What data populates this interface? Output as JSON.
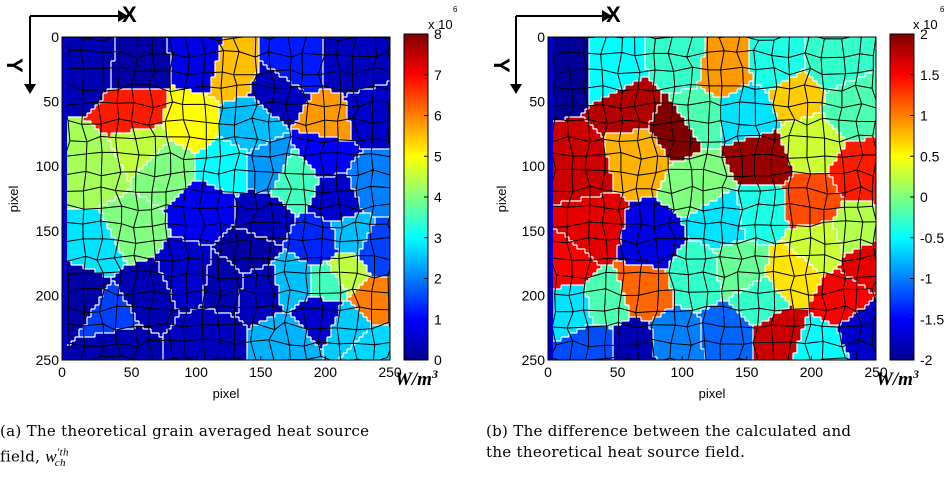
{
  "panels": [
    {
      "id": "a",
      "caption_tag": "(a)",
      "caption_line1": "The theoretical grain averaged heat source",
      "caption_line2": "field,",
      "caption_symbol": "w′ th ch",
      "x_axis_arrow": "X",
      "y_axis_arrow": "Y",
      "colorbar_exponent": "x 10",
      "colorbar_exponent_power": "6",
      "unit_label": "W/m³",
      "colormap": "jet"
    },
    {
      "id": "b",
      "caption_tag": "(b)",
      "caption_line1": "The difference between the calculated and",
      "caption_line2": "the theoretical heat source field.",
      "x_axis_arrow": "X",
      "y_axis_arrow": "Y",
      "colorbar_exponent": "x 10",
      "colorbar_exponent_power": "6",
      "unit_label": "W/m³",
      "colormap": "jet"
    }
  ],
  "chart_data": [
    {
      "type": "heatmap",
      "xlabel": "pixel",
      "ylabel": "pixel",
      "xlim": [
        0,
        250
      ],
      "ylim": [
        0,
        250
      ],
      "y_reversed": true,
      "x_ticks": [
        "0",
        "50",
        "100",
        "150",
        "200",
        "250"
      ],
      "y_ticks": [
        "0",
        "50",
        "100",
        "150",
        "200",
        "250"
      ],
      "colorbar_range": [
        0,
        8
      ],
      "colorbar_ticks": [
        "0",
        "1",
        "2",
        "3",
        "4",
        "5",
        "6",
        "7",
        "8"
      ],
      "grains": [
        {
          "x": 15,
          "y": 20,
          "value": 0.4
        },
        {
          "x": 55,
          "y": 25,
          "value": 0.3
        },
        {
          "x": 105,
          "y": 20,
          "value": 0.8
        },
        {
          "x": 125,
          "y": 25,
          "value": 5.5
        },
        {
          "x": 165,
          "y": 40,
          "value": 0.5
        },
        {
          "x": 175,
          "y": 25,
          "value": 1.2
        },
        {
          "x": 220,
          "y": 25,
          "value": 0.5
        },
        {
          "x": 205,
          "y": 65,
          "value": 5.8
        },
        {
          "x": 230,
          "y": 60,
          "value": 0.6
        },
        {
          "x": 55,
          "y": 58,
          "value": 6.8
        },
        {
          "x": 95,
          "y": 65,
          "value": 5.0
        },
        {
          "x": 20,
          "y": 105,
          "value": 4.3
        },
        {
          "x": 60,
          "y": 85,
          "value": 4.5
        },
        {
          "x": 75,
          "y": 100,
          "value": 4.0
        },
        {
          "x": 140,
          "y": 70,
          "value": 2.5
        },
        {
          "x": 200,
          "y": 90,
          "value": 1.0
        },
        {
          "x": 155,
          "y": 100,
          "value": 2.2
        },
        {
          "x": 125,
          "y": 100,
          "value": 3.0
        },
        {
          "x": 175,
          "y": 110,
          "value": 3.5
        },
        {
          "x": 235,
          "y": 115,
          "value": 2.0
        },
        {
          "x": 210,
          "y": 125,
          "value": 0.6
        },
        {
          "x": 45,
          "y": 150,
          "value": 4.0
        },
        {
          "x": 25,
          "y": 160,
          "value": 2.8
        },
        {
          "x": 110,
          "y": 135,
          "value": 0.9
        },
        {
          "x": 150,
          "y": 140,
          "value": 0.5
        },
        {
          "x": 195,
          "y": 160,
          "value": 1.3
        },
        {
          "x": 220,
          "y": 155,
          "value": 2.5
        },
        {
          "x": 240,
          "y": 165,
          "value": 1.5
        },
        {
          "x": 10,
          "y": 200,
          "value": 0.3
        },
        {
          "x": 35,
          "y": 215,
          "value": 1.5
        },
        {
          "x": 60,
          "y": 200,
          "value": 0.4
        },
        {
          "x": 95,
          "y": 185,
          "value": 0.6
        },
        {
          "x": 120,
          "y": 190,
          "value": 0.4
        },
        {
          "x": 150,
          "y": 195,
          "value": 0.5
        },
        {
          "x": 175,
          "y": 190,
          "value": 2.5
        },
        {
          "x": 200,
          "y": 190,
          "value": 3.5
        },
        {
          "x": 215,
          "y": 180,
          "value": 4.5
        },
        {
          "x": 240,
          "y": 205,
          "value": 6.0
        },
        {
          "x": 195,
          "y": 215,
          "value": 0.6
        },
        {
          "x": 220,
          "y": 225,
          "value": 2.6
        },
        {
          "x": 40,
          "y": 240,
          "value": 0.4
        },
        {
          "x": 110,
          "y": 235,
          "value": 0.5
        },
        {
          "x": 170,
          "y": 235,
          "value": 2.4
        },
        {
          "x": 235,
          "y": 240,
          "value": 2.7
        },
        {
          "x": 140,
          "y": 165,
          "value": 0.3
        }
      ]
    },
    {
      "type": "heatmap",
      "xlabel": "pixel",
      "ylabel": "pixel",
      "xlim": [
        0,
        250
      ],
      "ylim": [
        0,
        250
      ],
      "y_reversed": true,
      "x_ticks": [
        "0",
        "50",
        "100",
        "150",
        "200",
        "250"
      ],
      "y_ticks": [
        "0",
        "50",
        "100",
        "150",
        "200",
        "250"
      ],
      "colorbar_range": [
        -2,
        2
      ],
      "colorbar_ticks": [
        "2",
        "1.5",
        "1",
        "0.5",
        "0",
        "-0.5",
        "-1",
        "-1.5",
        "-2"
      ],
      "grains": [
        {
          "x": 10,
          "y": 25,
          "value": -1.9
        },
        {
          "x": 45,
          "y": 25,
          "value": -0.5
        },
        {
          "x": 100,
          "y": 20,
          "value": -0.3
        },
        {
          "x": 130,
          "y": 25,
          "value": 0.9
        },
        {
          "x": 175,
          "y": 20,
          "value": -0.4
        },
        {
          "x": 215,
          "y": 20,
          "value": -0.3
        },
        {
          "x": 190,
          "y": 45,
          "value": 0.7
        },
        {
          "x": 230,
          "y": 55,
          "value": -0.2
        },
        {
          "x": 60,
          "y": 55,
          "value": 1.8
        },
        {
          "x": 95,
          "y": 70,
          "value": 2.0
        },
        {
          "x": 20,
          "y": 100,
          "value": 1.7
        },
        {
          "x": 65,
          "y": 90,
          "value": 0.8
        },
        {
          "x": 110,
          "y": 60,
          "value": -0.2
        },
        {
          "x": 150,
          "y": 60,
          "value": -0.6
        },
        {
          "x": 160,
          "y": 95,
          "value": 1.9
        },
        {
          "x": 200,
          "y": 80,
          "value": 0.3
        },
        {
          "x": 240,
          "y": 105,
          "value": 1.4
        },
        {
          "x": 115,
          "y": 115,
          "value": 0.0
        },
        {
          "x": 30,
          "y": 150,
          "value": 1.6
        },
        {
          "x": 10,
          "y": 175,
          "value": 1.5
        },
        {
          "x": 75,
          "y": 160,
          "value": -1.6
        },
        {
          "x": 130,
          "y": 140,
          "value": -0.6
        },
        {
          "x": 160,
          "y": 135,
          "value": -0.4
        },
        {
          "x": 200,
          "y": 130,
          "value": 1.2
        },
        {
          "x": 235,
          "y": 150,
          "value": 0.2
        },
        {
          "x": 205,
          "y": 160,
          "value": 0.3
        },
        {
          "x": 245,
          "y": 175,
          "value": 1.6
        },
        {
          "x": 185,
          "y": 185,
          "value": 0.6
        },
        {
          "x": 70,
          "y": 195,
          "value": 1.1
        },
        {
          "x": 15,
          "y": 210,
          "value": -0.6
        },
        {
          "x": 40,
          "y": 205,
          "value": -0.2
        },
        {
          "x": 110,
          "y": 185,
          "value": -0.3
        },
        {
          "x": 145,
          "y": 180,
          "value": -0.1
        },
        {
          "x": 160,
          "y": 205,
          "value": -0.3
        },
        {
          "x": 225,
          "y": 205,
          "value": 1.5
        },
        {
          "x": 240,
          "y": 225,
          "value": -1.7
        },
        {
          "x": 30,
          "y": 240,
          "value": -1.2
        },
        {
          "x": 95,
          "y": 235,
          "value": -1.0
        },
        {
          "x": 135,
          "y": 230,
          "value": -1.1
        },
        {
          "x": 175,
          "y": 230,
          "value": 1.7
        },
        {
          "x": 205,
          "y": 240,
          "value": -0.5
        },
        {
          "x": 60,
          "y": 240,
          "value": -1.8
        }
      ]
    }
  ]
}
